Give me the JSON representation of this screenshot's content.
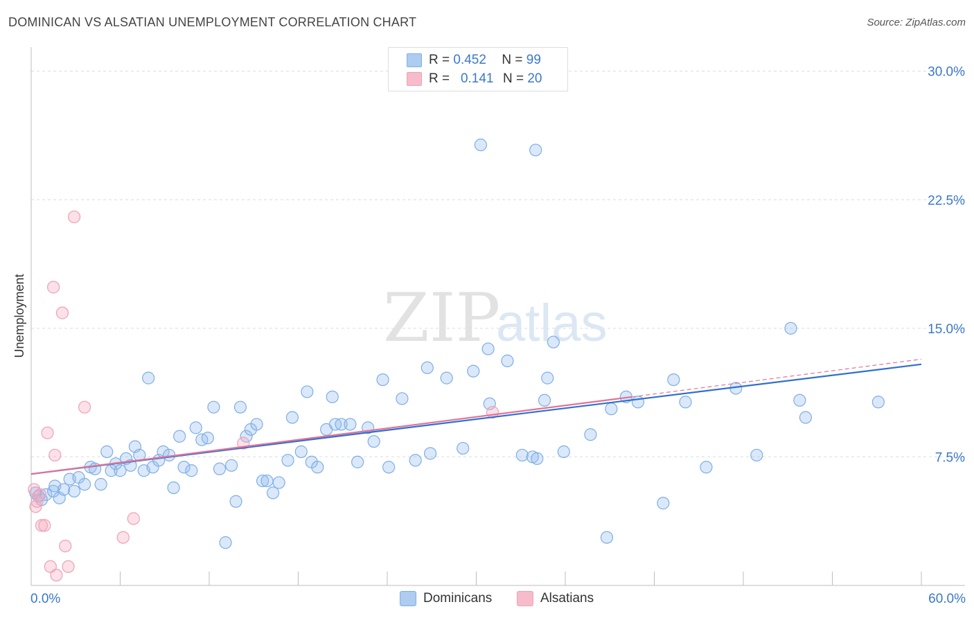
{
  "header": {
    "title": "DOMINICAN VS ALSATIAN UNEMPLOYMENT CORRELATION CHART",
    "source": "Source: ZipAtlas.com"
  },
  "watermark": {
    "zip": "ZIP",
    "atlas": "atlas"
  },
  "legend": {
    "rows": [
      {
        "r_label": "R =",
        "r_value": "0.452",
        "n_label": "N =",
        "n_value": "99",
        "color": "#aecbf0"
      },
      {
        "r_label": "R =",
        "r_value": "0.141",
        "n_label": "N =",
        "n_value": "20",
        "color": "#f7bccb"
      }
    ]
  },
  "bottom_legend": [
    {
      "label": "Dominicans",
      "color": "#aecbf0"
    },
    {
      "label": "Alsatians",
      "color": "#f7bccb"
    }
  ],
  "colors": {
    "blue_point_fill": "rgba(150,190,238,0.35)",
    "blue_point_stroke": "#7eaee6",
    "pink_point_fill": "rgba(245,170,190,0.35)",
    "pink_point_stroke": "#eea0b6",
    "blue_line": "#2f6fce",
    "pink_line": "#e07298",
    "axis_text": "#3a78c9"
  },
  "chart_data": {
    "type": "scatter",
    "title": "DOMINICAN VS ALSATIAN UNEMPLOYMENT CORRELATION CHART",
    "xlabel": "",
    "ylabel": "Unemployment",
    "xlim": [
      0,
      60
    ],
    "ylim": [
      0,
      31
    ],
    "x_tick_labels": [
      "0.0%",
      "60.0%"
    ],
    "y_ticks": [
      7.5,
      15.0,
      22.5,
      30.0
    ],
    "y_tick_labels": [
      "7.5%",
      "15.0%",
      "22.5%",
      "30.0%"
    ],
    "grid": true,
    "series": [
      {
        "name": "Dominicans",
        "points": [
          [
            0.3,
            5.4
          ],
          [
            0.5,
            5.2
          ],
          [
            0.7,
            5.0
          ],
          [
            1.0,
            5.3
          ],
          [
            1.5,
            5.5
          ],
          [
            1.6,
            5.8
          ],
          [
            1.9,
            5.1
          ],
          [
            2.2,
            5.6
          ],
          [
            2.6,
            6.2
          ],
          [
            2.9,
            5.5
          ],
          [
            3.2,
            6.3
          ],
          [
            3.6,
            5.9
          ],
          [
            4.0,
            6.9
          ],
          [
            4.3,
            6.8
          ],
          [
            4.7,
            5.9
          ],
          [
            5.1,
            7.8
          ],
          [
            5.4,
            6.7
          ],
          [
            5.7,
            7.1
          ],
          [
            6.0,
            6.7
          ],
          [
            6.4,
            7.4
          ],
          [
            6.7,
            7.0
          ],
          [
            7.0,
            8.1
          ],
          [
            7.3,
            7.6
          ],
          [
            7.6,
            6.7
          ],
          [
            7.9,
            12.1
          ],
          [
            8.2,
            6.9
          ],
          [
            8.6,
            7.3
          ],
          [
            8.9,
            7.8
          ],
          [
            9.3,
            7.6
          ],
          [
            9.6,
            5.7
          ],
          [
            10.0,
            8.7
          ],
          [
            10.3,
            6.9
          ],
          [
            10.8,
            6.7
          ],
          [
            11.1,
            9.2
          ],
          [
            11.5,
            8.5
          ],
          [
            11.9,
            8.6
          ],
          [
            12.3,
            10.4
          ],
          [
            12.7,
            6.8
          ],
          [
            13.1,
            2.5
          ],
          [
            13.5,
            7.0
          ],
          [
            13.8,
            4.9
          ],
          [
            14.1,
            10.4
          ],
          [
            14.5,
            8.7
          ],
          [
            14.8,
            9.1
          ],
          [
            15.2,
            9.4
          ],
          [
            15.6,
            6.1
          ],
          [
            15.9,
            6.1
          ],
          [
            16.3,
            5.4
          ],
          [
            16.7,
            6.0
          ],
          [
            17.3,
            7.3
          ],
          [
            17.6,
            9.8
          ],
          [
            18.2,
            7.8
          ],
          [
            18.6,
            11.3
          ],
          [
            18.9,
            7.2
          ],
          [
            19.3,
            6.9
          ],
          [
            19.9,
            9.1
          ],
          [
            20.3,
            11.0
          ],
          [
            20.5,
            9.4
          ],
          [
            20.9,
            9.4
          ],
          [
            21.5,
            9.4
          ],
          [
            22.0,
            7.2
          ],
          [
            22.7,
            9.2
          ],
          [
            23.1,
            8.4
          ],
          [
            23.7,
            12.0
          ],
          [
            24.1,
            6.9
          ],
          [
            25.0,
            10.9
          ],
          [
            25.9,
            7.3
          ],
          [
            26.7,
            12.7
          ],
          [
            26.9,
            7.7
          ],
          [
            28.0,
            12.1
          ],
          [
            29.1,
            8.0
          ],
          [
            29.8,
            12.5
          ],
          [
            30.3,
            25.7
          ],
          [
            30.8,
            13.8
          ],
          [
            30.9,
            10.6
          ],
          [
            32.1,
            13.1
          ],
          [
            33.1,
            7.6
          ],
          [
            33.8,
            7.5
          ],
          [
            34.0,
            25.4
          ],
          [
            34.1,
            7.4
          ],
          [
            34.6,
            10.8
          ],
          [
            34.8,
            12.1
          ],
          [
            35.2,
            14.2
          ],
          [
            35.9,
            7.8
          ],
          [
            37.7,
            8.8
          ],
          [
            38.8,
            2.8
          ],
          [
            39.1,
            10.3
          ],
          [
            40.1,
            11.0
          ],
          [
            40.9,
            10.7
          ],
          [
            42.6,
            4.8
          ],
          [
            43.3,
            12.0
          ],
          [
            44.1,
            10.7
          ],
          [
            45.5,
            6.9
          ],
          [
            47.5,
            11.5
          ],
          [
            48.9,
            7.6
          ],
          [
            51.2,
            15.0
          ],
          [
            51.8,
            10.8
          ],
          [
            52.2,
            9.8
          ],
          [
            57.1,
            10.7
          ]
        ]
      },
      {
        "name": "Alsatians",
        "points": [
          [
            0.2,
            5.6
          ],
          [
            0.3,
            4.6
          ],
          [
            0.4,
            4.9
          ],
          [
            0.6,
            5.3
          ],
          [
            0.7,
            3.5
          ],
          [
            0.9,
            3.5
          ],
          [
            1.1,
            8.9
          ],
          [
            1.3,
            1.1
          ],
          [
            1.5,
            17.4
          ],
          [
            1.6,
            7.6
          ],
          [
            1.7,
            0.6
          ],
          [
            2.1,
            15.9
          ],
          [
            2.3,
            2.3
          ],
          [
            2.5,
            1.1
          ],
          [
            2.9,
            21.5
          ],
          [
            3.6,
            10.4
          ],
          [
            6.2,
            2.8
          ],
          [
            6.9,
            3.9
          ],
          [
            14.3,
            8.3
          ],
          [
            31.1,
            10.1
          ]
        ]
      }
    ],
    "trend_lines": [
      {
        "series": "Dominicans",
        "x": [
          0,
          60
        ],
        "y": [
          6.5,
          12.9
        ]
      },
      {
        "series": "Alsatians",
        "x": [
          0,
          40.5
        ],
        "y": [
          6.5,
          11.0
        ]
      },
      {
        "series": "Alsatians (extrapolated)",
        "x": [
          40.5,
          60
        ],
        "y": [
          11.0,
          13.2
        ]
      }
    ]
  }
}
